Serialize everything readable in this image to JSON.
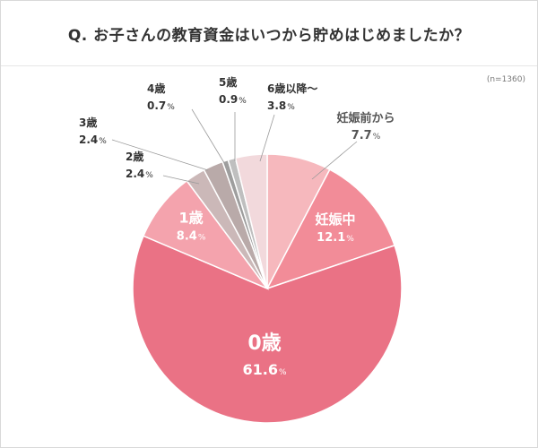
{
  "title": "Q. お子さんの教育資金はいつから貯めはじめましたか？",
  "sample_note": "(n=1360)",
  "percent_sign": "%",
  "chart_data": {
    "type": "pie",
    "title": "Q. お子さんの教育資金はいつから貯めはじめましたか？",
    "unit": "%",
    "start": "12 o'clock, clockwise",
    "slices": [
      {
        "label": "妊娠前から",
        "value": 7.7,
        "color": "#f6b8bd",
        "label_color": "#555555"
      },
      {
        "label": "妊娠中",
        "value": 12.1,
        "color": "#f28c98",
        "label_color": "#ffffff"
      },
      {
        "label": "0歳",
        "value": 61.6,
        "color": "#ea7285",
        "label_color": "#ffffff"
      },
      {
        "label": "1歳",
        "value": 8.4,
        "color": "#f4a3ad",
        "label_color": "#ffffff"
      },
      {
        "label": "2歳",
        "value": 2.4,
        "color": "#cbb8b8",
        "label_color": "#333333"
      },
      {
        "label": "3歳",
        "value": 2.4,
        "color": "#b9aaa9",
        "label_color": "#333333"
      },
      {
        "label": "4歳",
        "value": 0.7,
        "color": "#9e9e9e",
        "label_color": "#333333"
      },
      {
        "label": "5歳",
        "value": 0.9,
        "color": "#bfbfbf",
        "label_color": "#333333"
      },
      {
        "label": "6歳以降～",
        "value": 3.8,
        "color": "#f2d9dc",
        "label_color": "#333333"
      }
    ]
  }
}
